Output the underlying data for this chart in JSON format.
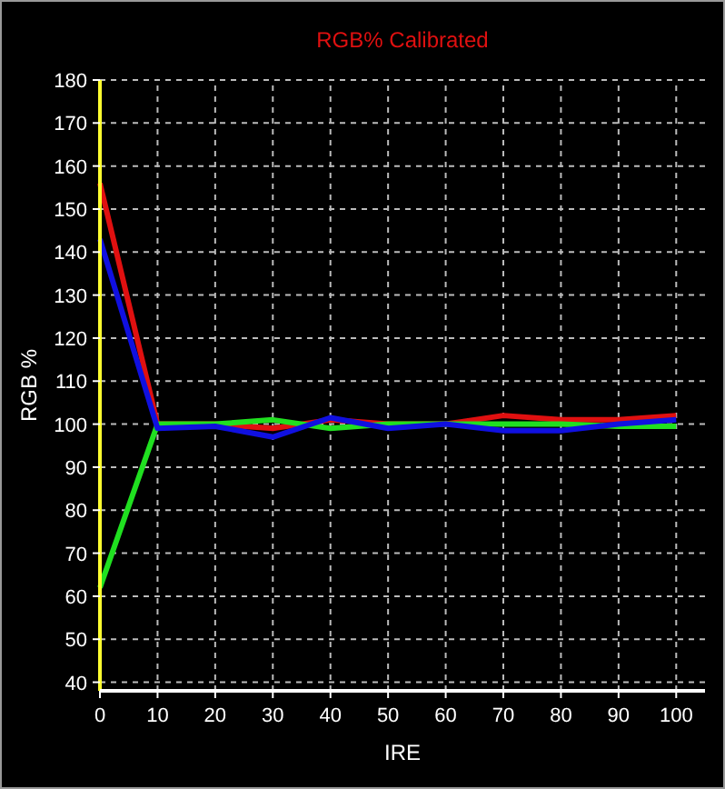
{
  "chart_data": {
    "type": "line",
    "title": "RGB% Calibrated",
    "xlabel": "IRE",
    "ylabel": "RGB %",
    "x": [
      0,
      10,
      20,
      30,
      40,
      50,
      60,
      70,
      80,
      90,
      100
    ],
    "series": [
      {
        "color": "#e01010",
        "values": [
          156,
          100,
          100,
          99,
          101,
          100,
          100,
          102,
          101,
          101,
          102
        ]
      },
      {
        "color": "#20e020",
        "values": [
          62,
          100,
          100,
          101,
          99,
          100,
          100,
          100,
          100,
          99.5,
          99.5
        ]
      },
      {
        "color": "#1010e0",
        "values": [
          143,
          99,
          99.5,
          97,
          101.5,
          99,
          100,
          98.5,
          98.5,
          100,
          101
        ]
      }
    ],
    "xlim": [
      0,
      105
    ],
    "ylim": [
      38,
      180
    ],
    "xticks": [
      0,
      10,
      20,
      30,
      40,
      50,
      60,
      70,
      80,
      90,
      100
    ],
    "yticks": [
      40,
      50,
      60,
      70,
      80,
      90,
      100,
      110,
      120,
      130,
      140,
      150,
      160,
      170,
      180
    ],
    "grid": true,
    "marker": "none",
    "line_style": "solid"
  }
}
